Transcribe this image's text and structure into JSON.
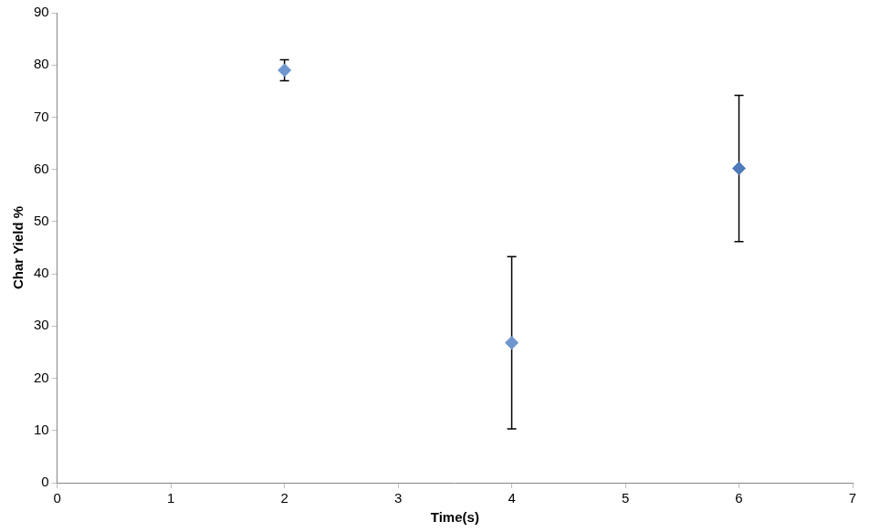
{
  "chart_data": {
    "type": "scatter",
    "x_label": "Time(s)",
    "y_label": "Char Yield %",
    "x": [
      2,
      4,
      6
    ],
    "values": [
      79,
      26.8,
      60.2
    ],
    "y_error": [
      2,
      16.5,
      14
    ],
    "colors": [
      "#6f97ce",
      "#6f97ce",
      "#4f7bb8"
    ],
    "marker": "diamond",
    "xlim": [
      0,
      7
    ],
    "xticks": [
      0,
      1,
      2,
      3,
      4,
      5,
      6,
      7
    ],
    "ylim": [
      0,
      90
    ],
    "yticks": [
      0,
      10,
      20,
      30,
      40,
      50,
      60,
      70,
      80,
      90
    ],
    "grid": false
  }
}
